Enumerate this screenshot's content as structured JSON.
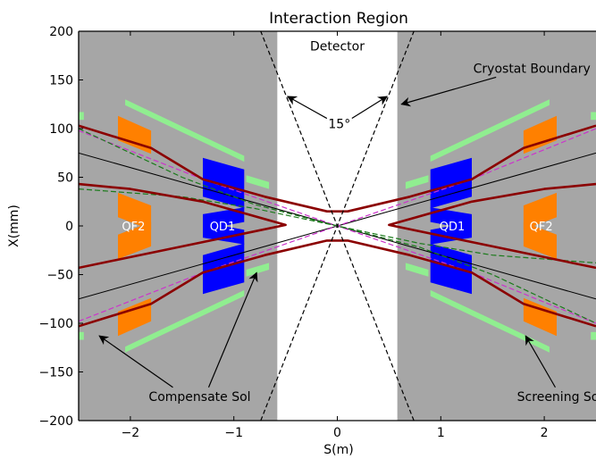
{
  "chart_data": {
    "type": "diagram",
    "title": "Interaction Region",
    "xlabel": "S(m)",
    "ylabel": "X(mm)",
    "xlim": [
      -2.5,
      2.5
    ],
    "ylim": [
      -200,
      200
    ],
    "x_ticks": [
      -2,
      -1,
      0,
      1,
      2
    ],
    "y_ticks": [
      -200,
      -150,
      -100,
      -50,
      0,
      50,
      100,
      150,
      200
    ],
    "grid": false,
    "colors": {
      "cryostat": "#a6a6a6",
      "quad_qf2": "#ff8000",
      "quad_qd1": "#0000ff",
      "solenoid": "#90ee90",
      "beam_pipe": "#8b0000",
      "dashed_magenta": "#cc33cc",
      "dashed_green": "#1a7a1a"
    },
    "labels": {
      "detector": "Detector",
      "cryostat_boundary": "Cryostat Boundary",
      "angle": "15°",
      "qf2": "QF2",
      "qd1": "QD1",
      "compensate_sol": "Compensate Sol",
      "screening_sol": "Screening Sol"
    },
    "cryostat_regions": [
      {
        "s": [
          -2.5,
          -0.58
        ],
        "x": [
          -200,
          200
        ]
      },
      {
        "s": [
          0.58,
          2.5
        ],
        "x": [
          -200,
          200
        ]
      }
    ],
    "quadrupoles": [
      {
        "name": "QF2",
        "pts": [
          [
            -2.12,
            113
          ],
          [
            -1.8,
            98
          ],
          [
            -1.8,
            74
          ],
          [
            -2.12,
            88
          ]
        ]
      },
      {
        "name": "QF2",
        "pts": [
          [
            -2.12,
            34
          ],
          [
            -1.8,
            21
          ],
          [
            -1.8,
            -4
          ],
          [
            -2.12,
            9
          ]
        ]
      },
      {
        "name": "QF2",
        "pts": [
          [
            -2.12,
            -9
          ],
          [
            -1.8,
            4
          ],
          [
            -1.8,
            -21
          ],
          [
            -2.12,
            -34
          ]
        ]
      },
      {
        "name": "QF2",
        "pts": [
          [
            -2.12,
            -88
          ],
          [
            -1.8,
            -74
          ],
          [
            -1.8,
            -98
          ],
          [
            -2.12,
            -113
          ]
        ]
      },
      {
        "name": "QF2",
        "pts": [
          [
            2.12,
            113
          ],
          [
            1.8,
            98
          ],
          [
            1.8,
            74
          ],
          [
            2.12,
            88
          ]
        ]
      },
      {
        "name": "QF2",
        "pts": [
          [
            2.12,
            34
          ],
          [
            1.8,
            21
          ],
          [
            1.8,
            -4
          ],
          [
            2.12,
            9
          ]
        ]
      },
      {
        "name": "QF2",
        "pts": [
          [
            2.12,
            -9
          ],
          [
            1.8,
            4
          ],
          [
            1.8,
            -21
          ],
          [
            2.12,
            -34
          ]
        ]
      },
      {
        "name": "QF2",
        "pts": [
          [
            2.12,
            -88
          ],
          [
            1.8,
            -74
          ],
          [
            1.8,
            -98
          ],
          [
            2.12,
            -113
          ]
        ]
      },
      {
        "name": "QD1",
        "pts": [
          [
            -1.3,
            70
          ],
          [
            -0.9,
            58
          ],
          [
            -0.9,
            18
          ],
          [
            -1.3,
            30
          ]
        ]
      },
      {
        "name": "QD1",
        "pts": [
          [
            -1.3,
            4
          ],
          [
            -0.9,
            -4
          ],
          [
            -0.9,
            -19
          ],
          [
            -1.3,
            -12
          ]
        ]
      },
      {
        "name": "QD1",
        "pts": [
          [
            -1.3,
            12
          ],
          [
            -0.9,
            19
          ],
          [
            -0.9,
            4
          ],
          [
            -1.3,
            -4
          ]
        ]
      },
      {
        "name": "QD1",
        "pts": [
          [
            -1.3,
            -30
          ],
          [
            -0.9,
            -18
          ],
          [
            -0.9,
            -58
          ],
          [
            -1.3,
            -70
          ]
        ]
      },
      {
        "name": "QD1",
        "pts": [
          [
            1.3,
            70
          ],
          [
            0.9,
            58
          ],
          [
            0.9,
            18
          ],
          [
            1.3,
            30
          ]
        ]
      },
      {
        "name": "QD1",
        "pts": [
          [
            1.3,
            4
          ],
          [
            0.9,
            -4
          ],
          [
            0.9,
            -19
          ],
          [
            1.3,
            -12
          ]
        ]
      },
      {
        "name": "QD1",
        "pts": [
          [
            1.3,
            12
          ],
          [
            0.9,
            19
          ],
          [
            0.9,
            4
          ],
          [
            1.3,
            -4
          ]
        ]
      },
      {
        "name": "QD1",
        "pts": [
          [
            1.3,
            -30
          ],
          [
            0.9,
            -18
          ],
          [
            0.9,
            -58
          ],
          [
            1.3,
            -70
          ]
        ]
      }
    ],
    "solenoids": [
      {
        "pts": [
          [
            -2.5,
            117
          ],
          [
            -2.45,
            117
          ],
          [
            -2.45,
            109
          ],
          [
            -2.5,
            109
          ]
        ]
      },
      {
        "pts": [
          [
            -2.5,
            -109
          ],
          [
            -2.45,
            -109
          ],
          [
            -2.45,
            -117
          ],
          [
            -2.5,
            -117
          ]
        ]
      },
      {
        "pts": [
          [
            -2.05,
            130
          ],
          [
            -0.9,
            72
          ],
          [
            -0.9,
            66
          ],
          [
            -2.05,
            124
          ]
        ]
      },
      {
        "pts": [
          [
            -2.05,
            -124
          ],
          [
            -0.9,
            -66
          ],
          [
            -0.9,
            -72
          ],
          [
            -2.05,
            -130
          ]
        ]
      },
      {
        "pts": [
          [
            -0.88,
            52
          ],
          [
            -0.66,
            45
          ],
          [
            -0.66,
            38
          ],
          [
            -0.88,
            45
          ]
        ]
      },
      {
        "pts": [
          [
            -0.88,
            -45
          ],
          [
            -0.66,
            -38
          ],
          [
            -0.66,
            -45
          ],
          [
            -0.88,
            -52
          ]
        ]
      },
      {
        "pts": [
          [
            2.5,
            117
          ],
          [
            2.45,
            117
          ],
          [
            2.45,
            109
          ],
          [
            2.5,
            109
          ]
        ]
      },
      {
        "pts": [
          [
            2.5,
            -109
          ],
          [
            2.45,
            -109
          ],
          [
            2.45,
            -117
          ],
          [
            2.5,
            -117
          ]
        ]
      },
      {
        "pts": [
          [
            2.05,
            130
          ],
          [
            0.9,
            72
          ],
          [
            0.9,
            66
          ],
          [
            2.05,
            124
          ]
        ]
      },
      {
        "pts": [
          [
            2.05,
            -124
          ],
          [
            0.9,
            -66
          ],
          [
            0.9,
            -72
          ],
          [
            2.05,
            -130
          ]
        ]
      },
      {
        "pts": [
          [
            0.88,
            52
          ],
          [
            0.66,
            45
          ],
          [
            0.66,
            38
          ],
          [
            0.88,
            45
          ]
        ]
      },
      {
        "pts": [
          [
            0.88,
            -45
          ],
          [
            0.66,
            -38
          ],
          [
            0.66,
            -45
          ],
          [
            0.88,
            -52
          ]
        ]
      }
    ],
    "beam_pipes": [
      {
        "pts": [
          [
            -2.5,
            103
          ],
          [
            -1.8,
            80
          ],
          [
            -1.3,
            48
          ],
          [
            -0.7,
            30
          ],
          [
            -0.1,
            15
          ],
          [
            0.1,
            15
          ],
          [
            0.7,
            30
          ],
          [
            1.3,
            48
          ],
          [
            1.8,
            80
          ],
          [
            2.5,
            103
          ]
        ]
      },
      {
        "pts": [
          [
            -2.5,
            -103
          ],
          [
            -1.8,
            -80
          ],
          [
            -1.3,
            -48
          ],
          [
            -0.7,
            -30
          ],
          [
            -0.1,
            -15
          ],
          [
            0.1,
            -15
          ],
          [
            0.7,
            -30
          ],
          [
            1.3,
            -48
          ],
          [
            1.8,
            -80
          ],
          [
            2.5,
            -103
          ]
        ]
      },
      {
        "pts": [
          [
            -2.5,
            43
          ],
          [
            -2.0,
            38
          ],
          [
            -1.3,
            25
          ],
          [
            -0.5,
            1
          ],
          [
            -2.5,
            -43
          ]
        ]
      },
      {
        "pts": [
          [
            2.5,
            43
          ],
          [
            2.0,
            38
          ],
          [
            1.3,
            25
          ],
          [
            0.5,
            1
          ],
          [
            2.5,
            -43
          ]
        ]
      }
    ],
    "thin_lines": [
      {
        "pts": [
          [
            -2.5,
            75
          ],
          [
            2.5,
            -75
          ]
        ]
      },
      {
        "pts": [
          [
            -2.5,
            -75
          ],
          [
            2.5,
            75
          ]
        ]
      }
    ],
    "dashed_magenta": [
      {
        "pts": [
          [
            -2.5,
            98
          ],
          [
            -1.3,
            48
          ],
          [
            0,
            0
          ],
          [
            1.3,
            -48
          ],
          [
            2.5,
            -100
          ]
        ]
      },
      {
        "pts": [
          [
            -2.5,
            -98
          ],
          [
            -1.3,
            -48
          ],
          [
            0,
            0
          ],
          [
            1.3,
            48
          ],
          [
            2.5,
            100
          ]
        ]
      }
    ],
    "dashed_green": [
      {
        "pts": [
          [
            -2.5,
            100
          ],
          [
            -1.5,
            50
          ],
          [
            -0.8,
            22
          ],
          [
            0,
            0
          ],
          [
            0.8,
            -22
          ],
          [
            1.5,
            -50
          ],
          [
            2.5,
            -100
          ]
        ]
      },
      {
        "pts": [
          [
            -2.5,
            38
          ],
          [
            -1.5,
            30
          ],
          [
            -0.8,
            18
          ],
          [
            0,
            0
          ],
          [
            0.8,
            -18
          ],
          [
            1.5,
            -30
          ],
          [
            2.5,
            -38
          ]
        ]
      }
    ],
    "detector_cone": [
      {
        "pts": [
          [
            -0.74,
            -200
          ],
          [
            0.74,
            200
          ]
        ]
      },
      {
        "pts": [
          [
            0.74,
            -200
          ],
          [
            -0.74,
            200
          ]
        ]
      }
    ],
    "annotations": [
      {
        "label": "detector",
        "text_at": [
          0,
          185
        ]
      },
      {
        "label": "cryostat_boundary",
        "text_at": [
          1.88,
          162
        ],
        "arrow_to": [
          0.62,
          125
        ]
      },
      {
        "label": "angle",
        "text_at": [
          0.02,
          105
        ],
        "arrows_to": [
          [
            -0.48,
            133
          ],
          [
            0.48,
            133
          ]
        ]
      },
      {
        "label": "compensate_sol",
        "text_at": [
          -1.33,
          -175
        ],
        "arrows_to": [
          [
            -2.3,
            -113
          ],
          [
            -0.78,
            -48
          ]
        ]
      },
      {
        "label": "screening_sol",
        "text_at": [
          2.15,
          -175
        ],
        "arrow_to": [
          1.82,
          -113
        ]
      },
      {
        "label": "qf2",
        "text_at": [
          -1.97,
          0
        ]
      },
      {
        "label": "qd1",
        "text_at": [
          -1.11,
          0
        ]
      },
      {
        "label": "qd1",
        "text_at": [
          1.11,
          0
        ]
      },
      {
        "label": "qf2",
        "text_at": [
          1.97,
          0
        ]
      }
    ]
  }
}
